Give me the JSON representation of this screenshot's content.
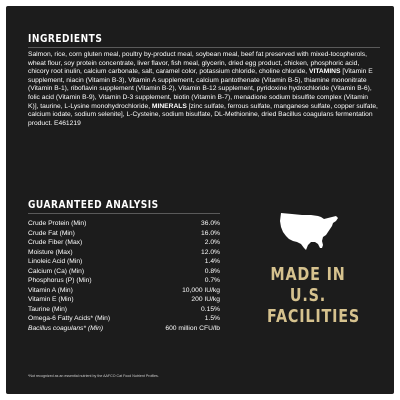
{
  "ingredients": {
    "heading": "INGREDIENTS",
    "text_before_vitamins": "Salmon, rice, corn gluten meal, poultry by-product meal, soybean meal, beef fat preserved with mixed-tocopherols, wheat flour, soy protein concentrate, liver flavor, fish meal, glycerin, dried egg product, chicken, phosphoric acid, chicory root inulin, calcium carbonate, salt, caramel color, potassium chloride, choline chloride, ",
    "vitamins_label": "VITAMINS",
    "text_vitamins": " [Vitamin E supplement, niacin (Vitamin B-3), Vitamin A supplement, calcium pantothenate (Vitamin B-5), thiamine mononitrate (Vitamin B-1), riboflavin supplement (Vitamin B-2), Vitamin B-12 supplement, pyridoxine hydrochloride (Vitamin B-6), folic acid (Vitamin B-9), Vitamin D-3 supplement, biotin (Vitamin B-7), menadione sodium bisulfite complex (Vitamin K)], taurine, L-Lysine monohydrochloride, ",
    "minerals_label": "MINERALS",
    "text_minerals": " [zinc sulfate, ferrous sulfate, manganese sulfate, copper sulfate, calcium iodate, sodium selenite], L-Cysteine, sodium bisulfate, DL-Methionine, dried Bacillus coagulans fermentation product. E461219"
  },
  "analysis": {
    "heading": "GUARANTEED ANALYSIS",
    "rows": [
      {
        "label": "Crude Protein (Min)",
        "value": "36.0%"
      },
      {
        "label": "Crude Fat (Min)",
        "value": "16.0%"
      },
      {
        "label": "Crude Fiber (Max)",
        "value": "2.0%"
      },
      {
        "label": "Moisture (Max)",
        "value": "12.0%"
      },
      {
        "label": "Linoleic Acid (Min)",
        "value": "1.4%"
      },
      {
        "label": "Calcium (Ca) (Min)",
        "value": "0.8%"
      },
      {
        "label": "Phosphorus (P) (Min)",
        "value": "0.7%"
      },
      {
        "label": "Vitamin A (Min)",
        "value": "10,000 IU/kg"
      },
      {
        "label": "Vitamin E (Min)",
        "value": "200 IU/kg"
      },
      {
        "label": "Taurine (Min)",
        "value": "0.15%"
      },
      {
        "label": "Omega-6 Fatty Acids* (Min)",
        "value": "1.5%"
      },
      {
        "label": "Bacillus coagulans* (Min)",
        "value": "600 million CFU/lb"
      }
    ]
  },
  "badge": {
    "icon": "usa-map-icon",
    "lines": [
      "MADE IN",
      "U.S.",
      "FACILITIES"
    ],
    "color": "#d6c28e"
  },
  "footnote": "*Not recognized as an essential nutrient by the AAFCO Cat Food Nutrient Profiles.",
  "colors": {
    "background": "#1c1c1c",
    "text": "#ffffff",
    "accent": "#d6c28e"
  }
}
